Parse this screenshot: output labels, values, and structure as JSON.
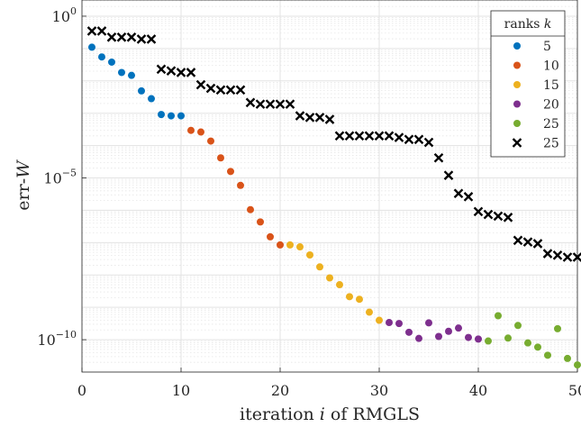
{
  "chart_data": {
    "type": "scatter",
    "title": "",
    "xlabel": "iteration i of RMGLS",
    "ylabel": "err-W",
    "xlim": [
      0,
      50
    ],
    "ylim_log10": [
      -11,
      0.5
    ],
    "yscale": "log",
    "grid": true,
    "legend_position": "top-right",
    "legend_title": "ranks k",
    "x_ticks": [
      0,
      10,
      20,
      30,
      40,
      50
    ],
    "x_tick_labels": [
      "0",
      "10",
      "20",
      "30",
      "40",
      "50"
    ],
    "y_ticks_log10": [
      0,
      -5,
      -10
    ],
    "y_tick_labels": [
      {
        "base": "10",
        "exp": "0"
      },
      {
        "base": "10",
        "exp": "−5"
      },
      {
        "base": "10",
        "exp": "−10"
      }
    ],
    "series": [
      {
        "name": "5",
        "marker": "dot",
        "color": "#0072bd",
        "x": [
          1,
          2,
          3,
          4,
          5,
          6,
          7,
          8,
          9,
          10
        ],
        "log10_y": [
          -0.96,
          -1.26,
          -1.42,
          -1.74,
          -1.83,
          -2.31,
          -2.55,
          -3.04,
          -3.08,
          -3.08
        ]
      },
      {
        "name": "10",
        "marker": "dot",
        "color": "#d95319",
        "x": [
          11,
          12,
          13,
          14,
          15,
          16,
          17,
          18,
          19,
          20
        ],
        "log10_y": [
          -3.53,
          -3.58,
          -3.86,
          -4.38,
          -4.8,
          -5.23,
          -5.98,
          -6.36,
          -6.82,
          -7.07
        ]
      },
      {
        "name": "15",
        "marker": "dot",
        "color": "#edb120",
        "x": [
          21,
          22,
          23,
          24,
          25,
          26,
          27,
          28,
          29,
          30
        ],
        "log10_y": [
          -7.07,
          -7.13,
          -7.38,
          -7.75,
          -8.09,
          -8.3,
          -8.67,
          -8.75,
          -9.15,
          -9.4
        ]
      },
      {
        "name": "20",
        "marker": "dot",
        "color": "#7e2f8e",
        "x": [
          31,
          32,
          33,
          34,
          35,
          36,
          37,
          38,
          39,
          40
        ],
        "log10_y": [
          -9.47,
          -9.5,
          -9.77,
          -9.96,
          -9.48,
          -9.9,
          -9.74,
          -9.64,
          -9.93,
          -9.98
        ]
      },
      {
        "name": "25",
        "marker": "dot",
        "color": "#77ac30",
        "x": [
          41,
          42,
          43,
          44,
          45,
          46,
          47,
          48,
          49,
          50
        ],
        "log10_y": [
          -10.04,
          -9.26,
          -9.95,
          -9.56,
          -10.1,
          -10.23,
          -10.48,
          -9.66,
          -10.58,
          -10.78
        ]
      },
      {
        "name": "25",
        "marker": "cross",
        "color": "#000000",
        "x": [
          1,
          2,
          3,
          4,
          5,
          6,
          7,
          8,
          9,
          10,
          11,
          12,
          13,
          14,
          15,
          16,
          17,
          18,
          19,
          20,
          21,
          22,
          23,
          24,
          25,
          26,
          27,
          28,
          29,
          30,
          31,
          32,
          33,
          34,
          35,
          36,
          37,
          38,
          39,
          40,
          41,
          42,
          43,
          44,
          45,
          46,
          47,
          48,
          49,
          50
        ],
        "log10_y": [
          -0.46,
          -0.46,
          -0.65,
          -0.65,
          -0.65,
          -0.71,
          -0.71,
          -1.64,
          -1.69,
          -1.74,
          -1.74,
          -2.12,
          -2.23,
          -2.28,
          -2.28,
          -2.28,
          -2.67,
          -2.72,
          -2.72,
          -2.72,
          -2.72,
          -3.08,
          -3.13,
          -3.13,
          -3.19,
          -3.7,
          -3.7,
          -3.7,
          -3.7,
          -3.7,
          -3.7,
          -3.75,
          -3.81,
          -3.81,
          -3.9,
          -4.38,
          -4.92,
          -5.48,
          -5.58,
          -6.04,
          -6.13,
          -6.18,
          -6.22,
          -6.93,
          -6.98,
          -7.03,
          -7.34,
          -7.39,
          -7.45,
          -7.45
        ]
      }
    ]
  }
}
